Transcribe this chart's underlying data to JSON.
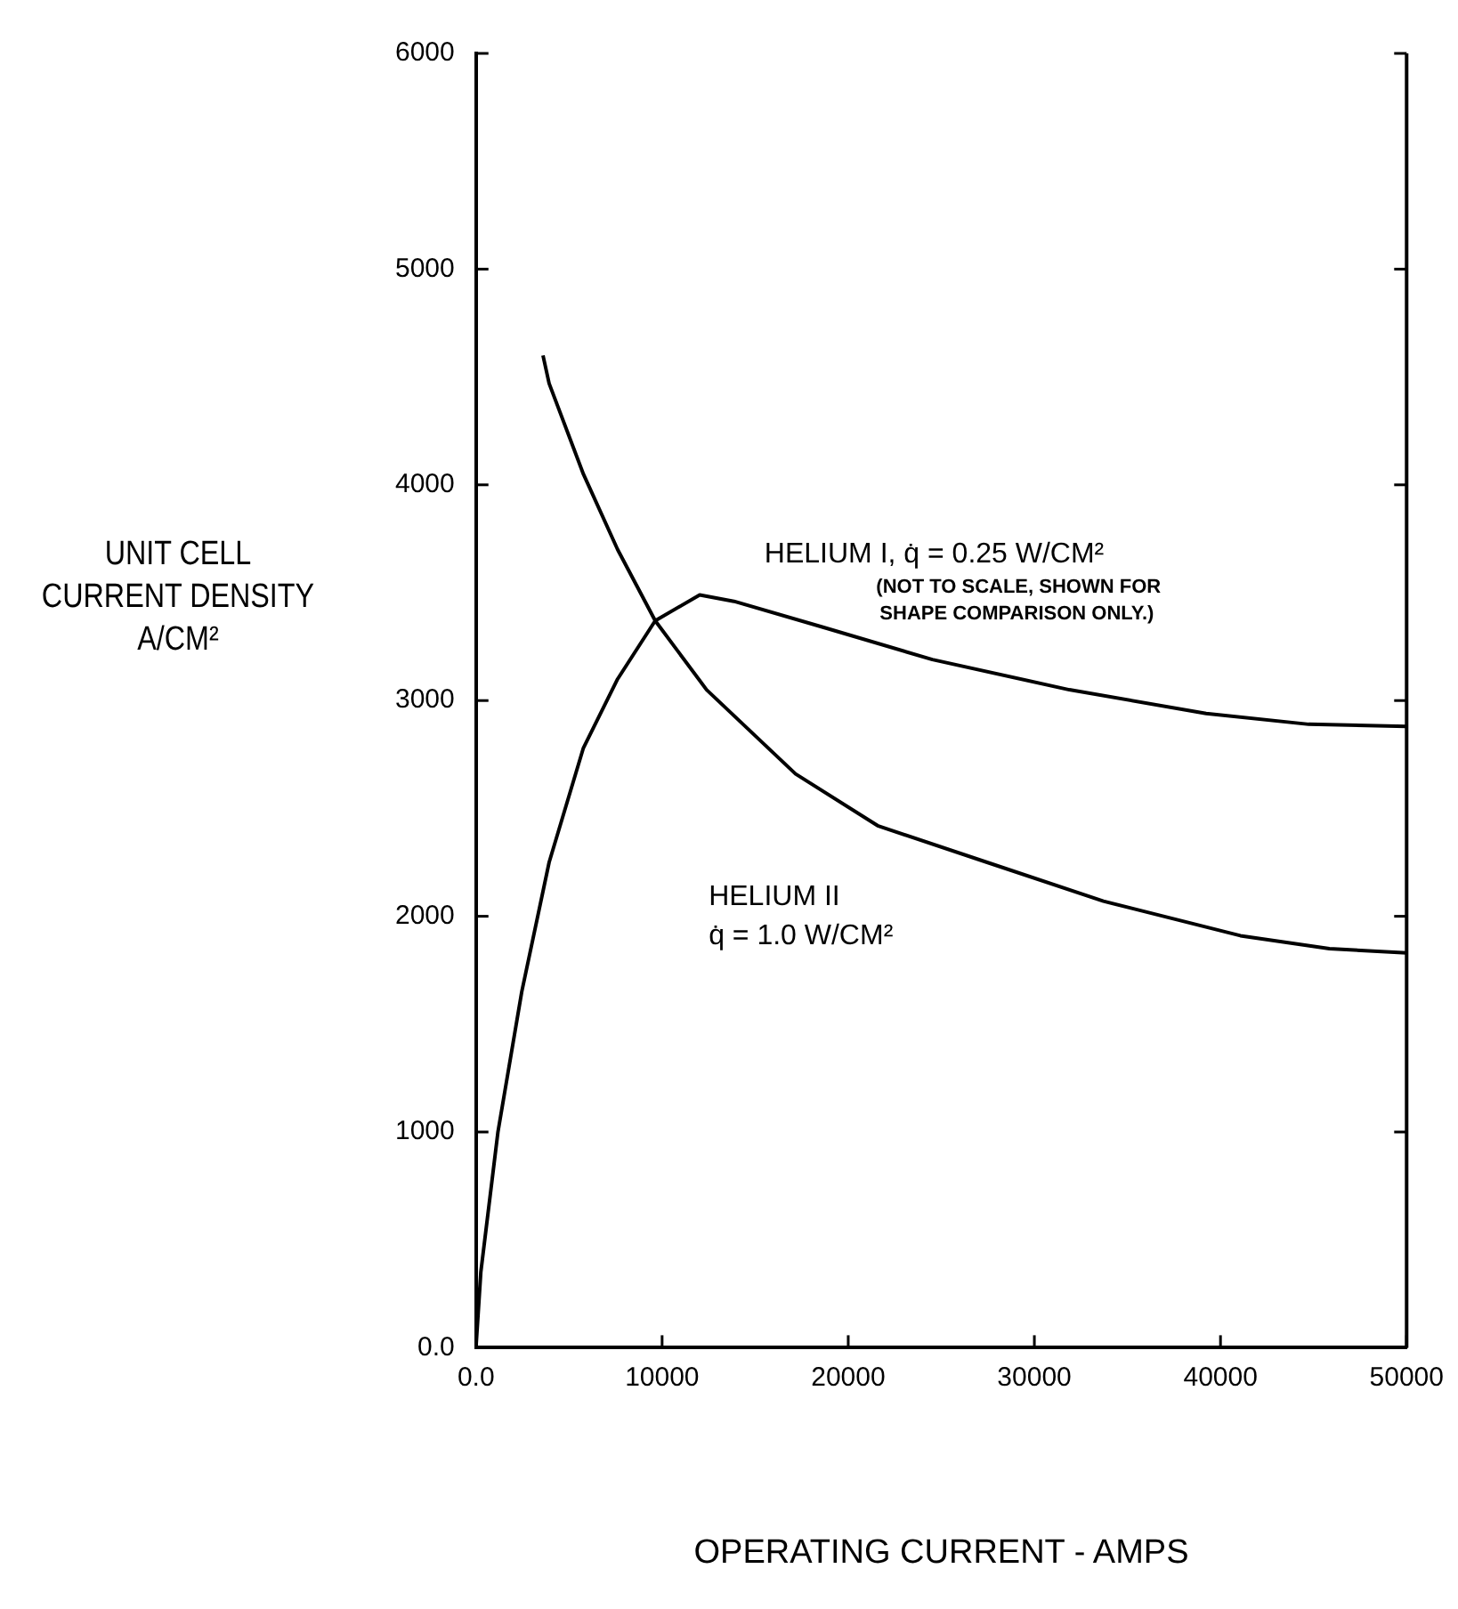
{
  "chart_data": {
    "type": "line",
    "xlabel": "OPERATING CURRENT - AMPS",
    "ylabel": "UNIT CELL\nCURRENT DENSITY\nA/CM²",
    "xlim": [
      0,
      50000
    ],
    "xticks": [
      {
        "value": 0,
        "label": "0.0"
      },
      10000,
      20000,
      30000,
      40000,
      50000
    ],
    "ylim": [
      0,
      6000
    ],
    "yticks": [
      {
        "value": 0,
        "label": "0.0"
      },
      1000,
      2000,
      3000,
      4000,
      5000,
      6000
    ],
    "grid": false,
    "legend": false,
    "marker": "none",
    "line_style": "solid",
    "series": [
      {
        "name": "HELIUM I, q̇ = 0.25 W/CM²",
        "color": "#000000",
        "x": [
          0,
          260,
          1180,
          2460,
          3930,
          5770,
          7610,
          9630,
          12020,
          13860,
          18640,
          24520,
          31880,
          39230,
          44740,
          50000
        ],
        "values": [
          0,
          350,
          1000,
          1650,
          2250,
          2780,
          3100,
          3370,
          3490,
          3460,
          3340,
          3190,
          3050,
          2940,
          2890,
          2880
        ]
      },
      {
        "name": "HELIUM II\nq̇ = 1.0 W/CM²",
        "color": "#000000",
        "x": [
          3600,
          3930,
          5770,
          7610,
          9630,
          12390,
          17170,
          21580,
          27460,
          33710,
          41070,
          45850,
          50000
        ],
        "values": [
          4600,
          4470,
          4050,
          3700,
          3370,
          3050,
          2660,
          2420,
          2250,
          2070,
          1910,
          1850,
          1830
        ]
      }
    ],
    "annotations": [
      "(NOT TO SCALE, SHOWN FOR\nSHAPE COMPARISON ONLY.)"
    ]
  }
}
